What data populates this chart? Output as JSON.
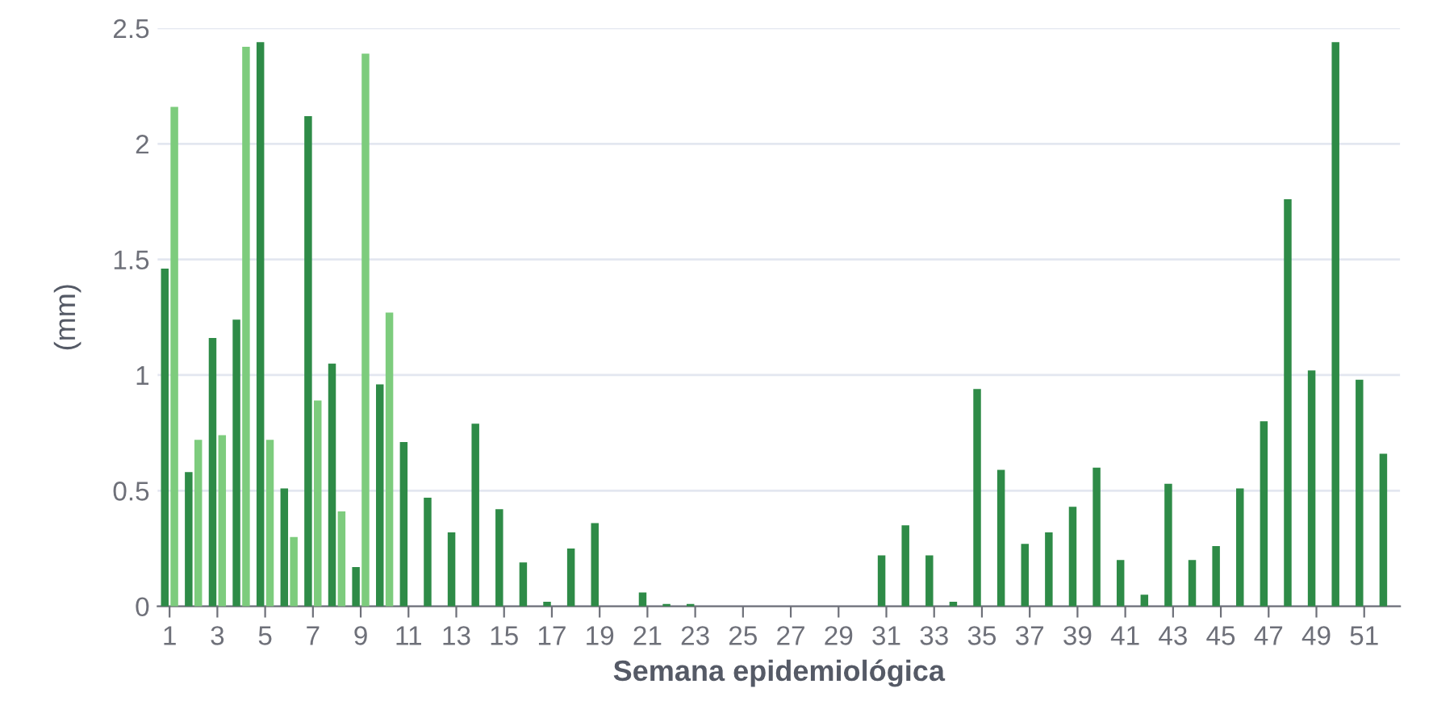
{
  "chart_data": {
    "type": "bar",
    "xlabel": "Semana epidemiológica",
    "ylabel": "(mm)",
    "categories": [
      "1",
      null,
      "3",
      null,
      "5",
      null,
      "7",
      null,
      "9",
      null,
      "11",
      null,
      "13",
      null,
      "15",
      null,
      "17",
      null,
      "19",
      null,
      "21",
      null,
      "23",
      null,
      "25",
      null,
      "27",
      null,
      "29",
      null,
      "31",
      null,
      "33",
      null,
      "35",
      null,
      "37",
      null,
      "39",
      null,
      "41",
      null,
      "43",
      null,
      "45",
      null,
      "47",
      null,
      "49",
      null,
      "51",
      null
    ],
    "series": [
      {
        "color": "#2e8b47",
        "values": [
          1.46,
          0.58,
          1.16,
          1.24,
          2.44,
          0.51,
          2.12,
          1.05,
          0.17,
          0.96,
          0.71,
          0.47,
          0.32,
          0.79,
          0.42,
          0.19,
          0.02,
          0.25,
          0.36,
          0,
          0.06,
          0.01,
          0.01,
          0,
          0,
          0,
          0,
          0,
          0,
          0,
          0.22,
          0.35,
          0.22,
          0.02,
          0.94,
          0.59,
          0.27,
          0.32,
          0.43,
          0.6,
          0.2,
          0.05,
          0.53,
          0.2,
          0.26,
          0.51,
          0.8,
          1.76,
          1.02,
          2.44,
          0.98,
          0.66
        ]
      },
      {
        "color": "#7dcc7d",
        "values": [
          2.16,
          0.72,
          0.74,
          2.42,
          0.72,
          0.3,
          0.89,
          0.41,
          2.39,
          1.27,
          null,
          null,
          null,
          null,
          null,
          null,
          null,
          null,
          null,
          null,
          null,
          null,
          null,
          null,
          null,
          null,
          null,
          null,
          null,
          null,
          null,
          null,
          null,
          null,
          null,
          null,
          null,
          null,
          null,
          null,
          null,
          null,
          null,
          null,
          null,
          null,
          null,
          null,
          null,
          null,
          null,
          null
        ]
      }
    ],
    "ylim": [
      0,
      2.5
    ],
    "yticks": [
      0,
      0.5,
      1,
      1.5,
      2,
      2.5
    ],
    "grid": "y",
    "legend": false
  }
}
